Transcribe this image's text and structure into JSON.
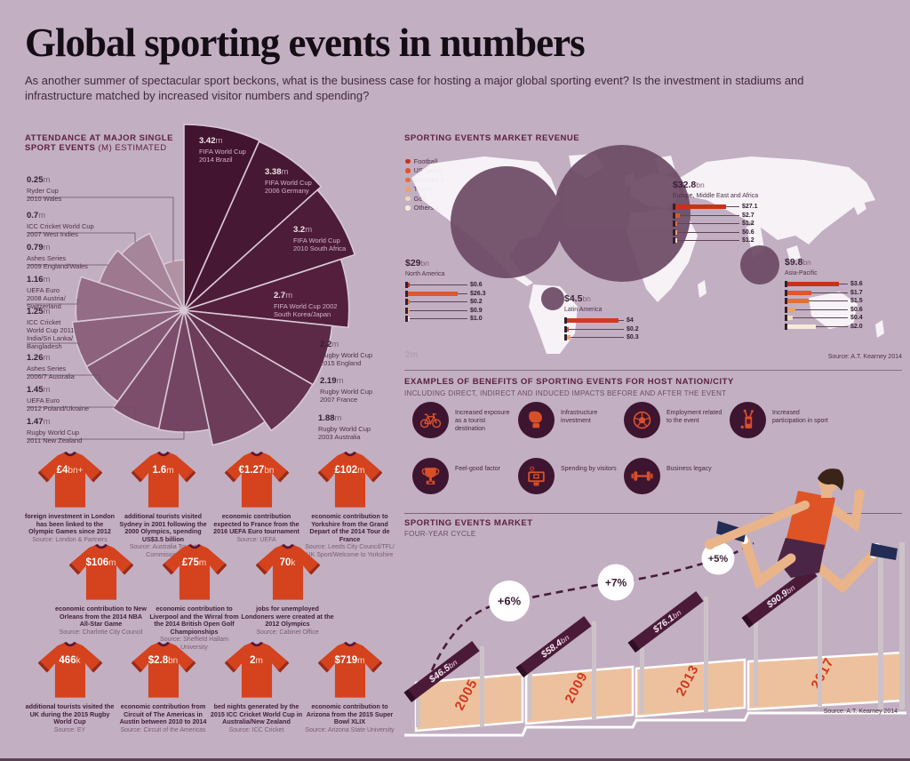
{
  "header": {
    "title": "Global sporting events in numbers",
    "subtitle": "As another summer of spectacular sport beckons, what is the business case for hosting a major global sporting event? Is the investment in stadiums and infrastructure matched by increased visitor numbers and spending?"
  },
  "chart_data": [
    {
      "type": "polar_area",
      "title": "ATTENDANCE AT MAJOR SINGLE SPORT EVENTS",
      "subtitle": "(M) ESTIMATED",
      "unit": "m",
      "events": [
        {
          "display": "3.42",
          "value": 3.42,
          "lines": [
            "FIFA World Cup",
            "2014 Brazil"
          ],
          "color": "#421430"
        },
        {
          "display": "3.38",
          "value": 3.38,
          "lines": [
            "FIFA World Cup",
            "2006 Germany"
          ],
          "color": "#471834"
        },
        {
          "display": "3.2",
          "value": 3.2,
          "lines": [
            "FIFA World Cup",
            "2010 South Africa"
          ],
          "color": "#4c1c38"
        },
        {
          "display": "2.7",
          "value": 2.7,
          "lines": [
            "FIFA World Cup 2002",
            "South Korea/Japan"
          ],
          "color": "#531f3d"
        },
        {
          "display": "2.2",
          "value": 2.2,
          "lines": [
            "Rugby World Cup",
            "2015 England"
          ],
          "color": "#5c2a46"
        },
        {
          "display": "2.19",
          "value": 2.19,
          "lines": [
            "Rugby World Cup",
            "2007 France"
          ],
          "color": "#643350"
        },
        {
          "display": "1.88",
          "value": 1.88,
          "lines": [
            "Rugby World Cup",
            "2003 Australia"
          ],
          "color": "#6c3c59"
        },
        {
          "display": "1.47",
          "value": 1.47,
          "lines": [
            "Rugby World Cup",
            "2011 New Zealand"
          ],
          "color": "#744562"
        },
        {
          "display": "1.45",
          "value": 1.45,
          "lines": [
            "UEFA Euro",
            "2012 Poland/Ukraine"
          ],
          "color": "#7c4e6b"
        },
        {
          "display": "1.26",
          "value": 1.26,
          "lines": [
            "Ashes Series",
            "2006/7 Australia"
          ],
          "color": "#845874"
        },
        {
          "display": "1.25",
          "value": 1.25,
          "lines": [
            "ICC Cricket",
            "World Cup 2011",
            "India/Sri Lanka/",
            "Bangladesh"
          ],
          "color": "#8c627d"
        },
        {
          "display": "1.16",
          "value": 1.16,
          "lines": [
            "UEFA Euro",
            "2008 Austria/",
            "Switzerland"
          ],
          "color": "#946c86"
        },
        {
          "display": "0.79",
          "value": 0.79,
          "lines": [
            "Ashes Series",
            "2009 England/Wales"
          ],
          "color": "#9d788f"
        },
        {
          "display": "0.7",
          "value": 0.7,
          "lines": [
            "ICC Cricket World Cup",
            "2007 West Indies"
          ],
          "color": "#a68499"
        },
        {
          "display": "0.25",
          "value": 0.25,
          "lines": [
            "Ryder Cup",
            "2010 Wales"
          ],
          "color": "#b092a3"
        }
      ]
    },
    {
      "type": "bar",
      "title": "SPORTING EVENTS MARKET REVENUE",
      "legend": [
        {
          "label": "Football",
          "color": "#c9311b"
        },
        {
          "label": "US sports",
          "color": "#e0562a"
        },
        {
          "label": "Formula 1",
          "color": "#e0703a"
        },
        {
          "label": "Tennis",
          "color": "#eca26b"
        },
        {
          "label": "Golf",
          "color": "#f0d9bd"
        },
        {
          "label": "Others",
          "color": "#f6ecd9"
        }
      ],
      "regions": [
        {
          "total": "$32.8",
          "unit": "bn",
          "name": "Europe, Middle East and Africa",
          "bars": [
            {
              "label": "$27.1",
              "value": 27.1,
              "color": "#c9311b"
            },
            {
              "label": "$2.7",
              "value": 2.7,
              "color": "#e0562a"
            },
            {
              "label": "$1.2",
              "value": 1.2,
              "color": "#e0703a"
            },
            {
              "label": "$0.6",
              "value": 0.6,
              "color": "#eca26b"
            },
            {
              "label": "$1.2",
              "value": 1.2,
              "color": "#f0d9bd"
            }
          ]
        },
        {
          "total": "$29",
          "unit": "bn",
          "name": "North America",
          "bars": [
            {
              "label": "$0.6",
              "value": 0.6,
              "color": "#c9311b"
            },
            {
              "label": "$26.3",
              "value": 26.3,
              "color": "#e0562a"
            },
            {
              "label": "$0.2",
              "value": 0.2,
              "color": "#e0703a"
            },
            {
              "label": "$0.9",
              "value": 0.9,
              "color": "#eca26b"
            },
            {
              "label": "$1.0",
              "value": 1.0,
              "color": "#f0d9bd"
            }
          ]
        },
        {
          "total": "$4.5",
          "unit": "bn",
          "name": "Latin America",
          "bars": [
            {
              "label": "$4",
              "value": 4,
              "color": "#d23a1e"
            },
            {
              "label": "$0.2",
              "value": 0.2,
              "color": "#e0562a"
            },
            {
              "label": "$0.3",
              "value": 0.3,
              "color": "#eca26b"
            }
          ]
        },
        {
          "total": "$9.8",
          "unit": "bn",
          "name": "Asia-Pacific",
          "bars": [
            {
              "label": "$3.6",
              "value": 3.6,
              "color": "#c9311b"
            },
            {
              "label": "$1.7",
              "value": 1.7,
              "color": "#e0562a"
            },
            {
              "label": "$1.5",
              "value": 1.5,
              "color": "#e0703a"
            },
            {
              "label": "$0.6",
              "value": 0.6,
              "color": "#eca26b"
            },
            {
              "label": "$0.4",
              "value": 0.4,
              "color": "#f0d9bd"
            },
            {
              "label": "$2.0",
              "value": 2.0,
              "color": "#f6ecd9"
            }
          ]
        }
      ],
      "scale_note": "2m",
      "source": "Source: A.T. Kearney 2014"
    },
    {
      "type": "bar",
      "title": "SPORTING EVENTS MARKET",
      "subtitle": "FOUR-YEAR CYCLE",
      "categories": [
        "2005",
        "2009",
        "2013",
        "2017"
      ],
      "values_bn": [
        46.5,
        58.4,
        76.1,
        90.9
      ],
      "amounts": [
        "$46.5",
        "$58.4",
        "$76.1",
        "$90.9"
      ],
      "unit": "bn",
      "growth": [
        "+6%",
        "+7%",
        "+5%"
      ],
      "source": "Source: A.T. Kearney 2014"
    }
  ],
  "benefits": {
    "title": "EXAMPLES OF BENEFITS OF SPORTING EVENTS FOR HOST NATION/CITY",
    "subtitle": "INCLUDING DIRECT, INDIRECT AND INDUCED IMPACTS BEFORE AND AFTER THE EVENT",
    "items": [
      {
        "icon": "bicycle-icon",
        "label": "Increased exposure as a tourist destination"
      },
      {
        "icon": "boxing-glove-icon",
        "label": "Infrastructure investment"
      },
      {
        "icon": "football-icon",
        "label": "Employment related to the event"
      },
      {
        "icon": "golf-bag-icon",
        "label": "Increased participation in sport"
      },
      {
        "icon": "trophy-icon",
        "label": "Feel-good factor"
      },
      {
        "icon": "basketball-hoop-icon",
        "label": "Spending by visitors"
      },
      {
        "icon": "dumbbell-icon",
        "label": "Business legacy"
      }
    ]
  },
  "tshirts": {
    "rows": [
      [
        {
          "amount": "£4",
          "unit": "bn+",
          "desc": "foreign investment in London has been linked to the Olympic Games since 2012",
          "source": "Source: London & Partners"
        },
        {
          "amount": "1.6",
          "unit": "m",
          "desc": "additional tourists visited Sydney in 2001 following the 2000 Olympics, spending US$3.5 billion",
          "source": "Source: Australia Tourist Commission"
        },
        {
          "amount": "€1.27",
          "unit": "bn",
          "desc": "economic contribution expected to France from the 2016 UEFA Euro tournament",
          "source": "Source: UEFA"
        },
        {
          "amount": "£102",
          "unit": "m",
          "desc": "economic contribution to Yorkshire from the Grand Depart of the 2014 Tour de France",
          "source": "Source: Leeds City Council/TFL/ UK Sport/Welcome to Yorkshire"
        }
      ],
      [
        {
          "amount": "$106",
          "unit": "m",
          "desc": "economic contribution to New Orleans from the 2014 NBA All-Star Game",
          "source": "Source: Charlotte City Council"
        },
        {
          "amount": "£75",
          "unit": "m",
          "desc": "economic contribution to Liverpool and the Wirral from the 2014 British Open Golf Championships",
          "source": "Source: Sheffield Hallam University"
        },
        {
          "amount": "70",
          "unit": "k",
          "desc": "jobs for unemployed Londoners were created at the 2012 Olympics",
          "source": "Source: Cabinet Office"
        }
      ],
      [
        {
          "amount": "466",
          "unit": "k",
          "desc": "additional tourists visited the UK during the 2015 Rugby World Cup",
          "source": "Source: EY"
        },
        {
          "amount": "$2.8",
          "unit": "bn",
          "desc": "economic contribution from Circuit of The Americas in Austin between 2010 to 2014",
          "source": "Source: Circuit of the Americas"
        },
        {
          "amount": "2",
          "unit": "m",
          "desc": "bed nights generated by the 2015 ICC Cricket World Cup in Australia/New Zealand",
          "source": "Source: ICC Cricket"
        },
        {
          "amount": "$719",
          "unit": "m",
          "desc": "economic contribution to Arizona from the 2015 Super Bowl XLIX",
          "source": "Source: Arizona State University"
        }
      ]
    ]
  }
}
